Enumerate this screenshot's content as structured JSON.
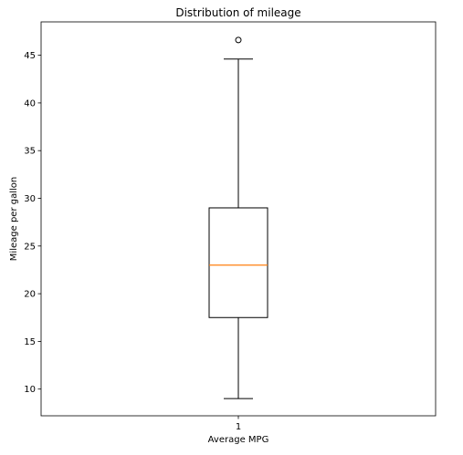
{
  "chart_data": {
    "type": "box",
    "title": "Distribution of mileage",
    "xlabel": "Average MPG",
    "ylabel": "Mileage per gallon",
    "categories": [
      "1"
    ],
    "ylim": [
      7.2,
      48.5
    ],
    "yticks": [
      10,
      15,
      20,
      25,
      30,
      35,
      40,
      45
    ],
    "grid": false,
    "series": [
      {
        "whisker_low": 9.0,
        "q1": 17.5,
        "median": 23.0,
        "q3": 29.0,
        "whisker_high": 44.6,
        "outliers": [
          46.6
        ]
      }
    ],
    "colors": {
      "box": "#000000",
      "median": "#ff7f0e",
      "background": "#ffffff"
    }
  }
}
